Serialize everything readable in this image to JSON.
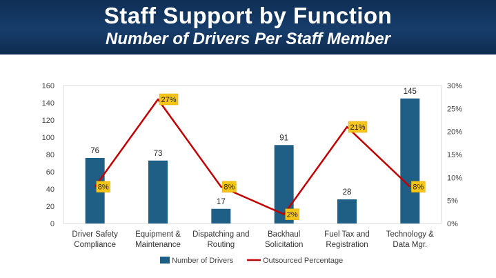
{
  "header": {
    "title": "Staff Support by Function",
    "subtitle": "Number of Drivers Per Staff Member"
  },
  "colors": {
    "banner": "#173d6b",
    "bar": "#1f5f85",
    "line": "#c00000",
    "label_bg": "#f5c518"
  },
  "chart_data": {
    "type": "bar",
    "categories": [
      [
        "Driver Safety",
        "Compliance"
      ],
      [
        "Equipment &",
        "Maintenance"
      ],
      [
        "Dispatching and",
        "Routing"
      ],
      [
        "Backhaul",
        "Solicitation"
      ],
      [
        "Fuel Tax and",
        "Registration"
      ],
      [
        "Technology &",
        "Data Mgr."
      ]
    ],
    "series": [
      {
        "name": "Number of Drivers",
        "type": "bar",
        "axis": "left",
        "values": [
          76,
          73,
          17,
          91,
          28,
          145
        ],
        "labels": [
          "76",
          "73",
          "17",
          "91",
          "28",
          "145"
        ]
      },
      {
        "name": "Outsourced Percentage",
        "type": "line",
        "axis": "right",
        "values": [
          8,
          27,
          8,
          2,
          21,
          8
        ],
        "labels": [
          "8%",
          "27%",
          "8%",
          "2%",
          "21%",
          "8%"
        ]
      }
    ],
    "y_left": {
      "min": 0,
      "max": 160,
      "ticks": [
        "0",
        "20",
        "40",
        "60",
        "80",
        "100",
        "120",
        "140",
        "160"
      ]
    },
    "y_right": {
      "min": 0,
      "max": 30,
      "ticks": [
        "0%",
        "5%",
        "10%",
        "15%",
        "20%",
        "25%",
        "30%"
      ]
    },
    "legend_position": "bottom",
    "grid": false
  }
}
